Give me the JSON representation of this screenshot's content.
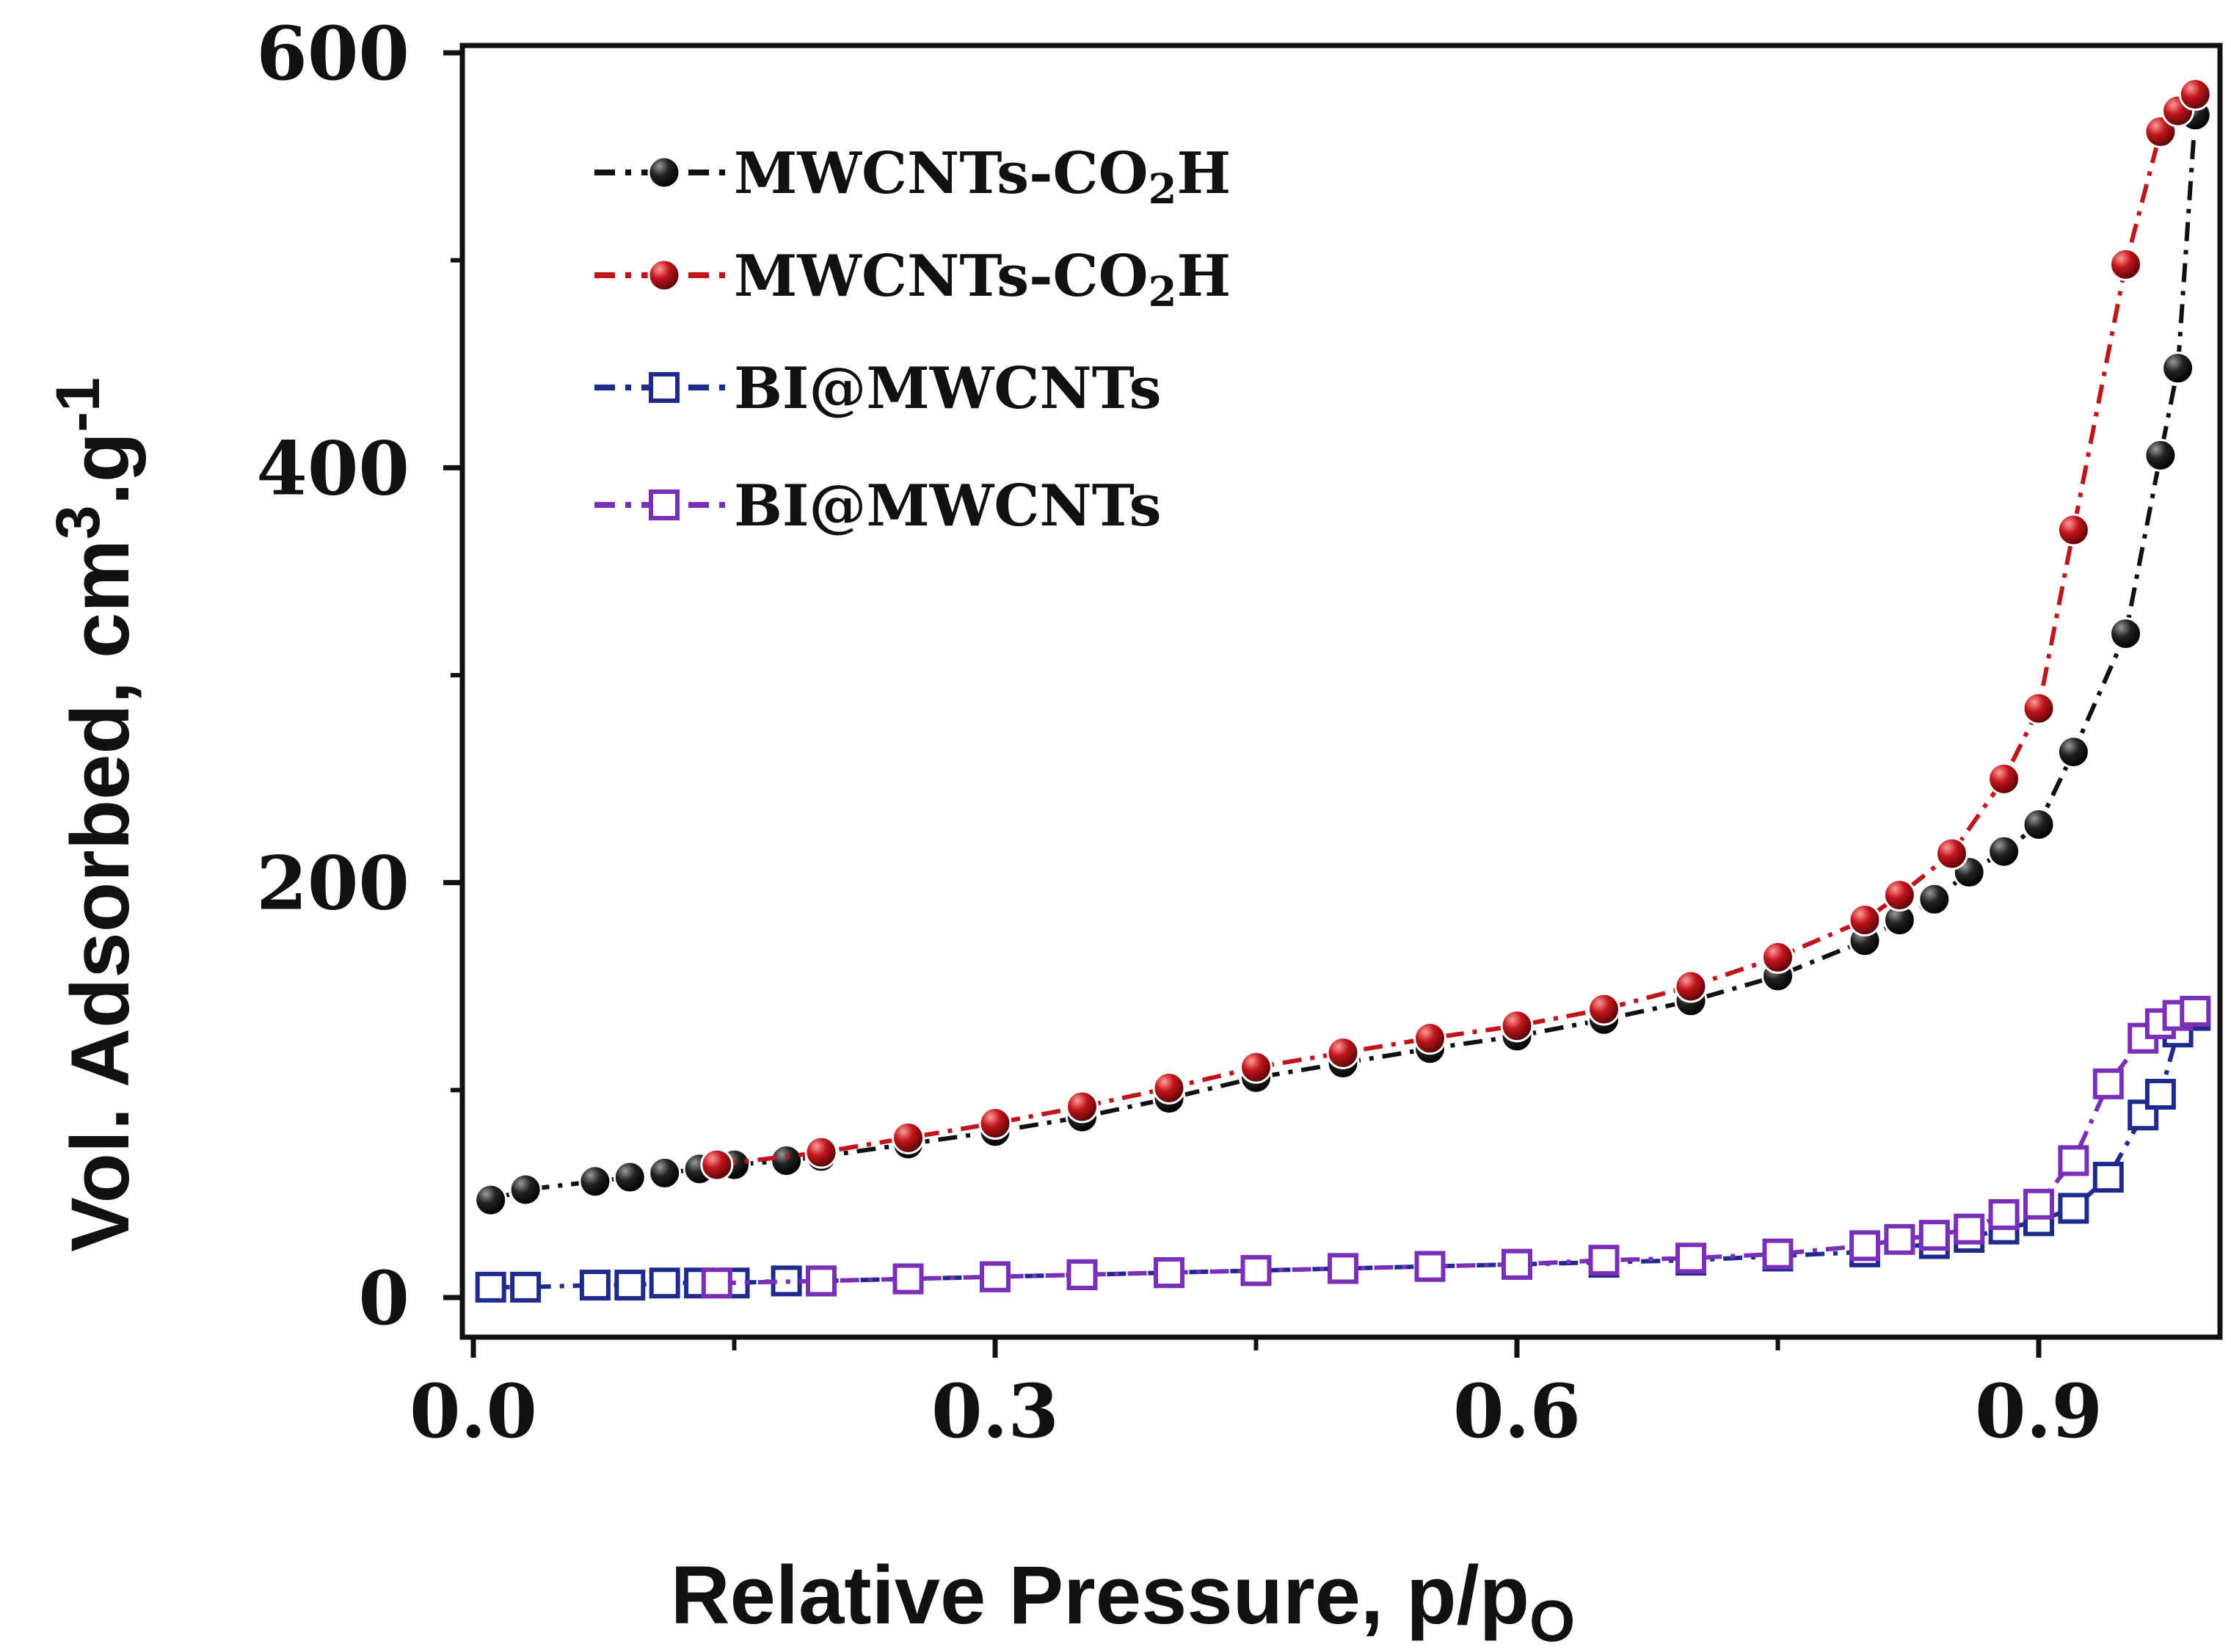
{
  "chart_data": {
    "type": "scatter",
    "title": "",
    "xlabel": "Relative Pressure, p/p",
    "xlabel_sub": "O",
    "ylabel": "Vol. Adsorbed, cm",
    "ylabel_sup1": "3",
    "ylabel_mid": ".g",
    "ylabel_sup2": "-1",
    "xlim": [
      0.0,
      1.0
    ],
    "ylim": [
      0,
      600
    ],
    "xticks": [
      0.0,
      0.3,
      0.6,
      0.9
    ],
    "xtick_labels": [
      "0.0",
      "0.3",
      "0.6",
      "0.9"
    ],
    "yticks": [
      0,
      200,
      400,
      600
    ],
    "ytick_labels": [
      "0",
      "200",
      "400",
      "600"
    ],
    "legend_position": "top-left",
    "series": [
      {
        "name": "MWCNTs-CO",
        "name_sub": "2",
        "name_tail": "H",
        "marker": "sphere",
        "color": "#111111",
        "line_style": "dash-dot",
        "x": [
          0.01,
          0.03,
          0.07,
          0.09,
          0.11,
          0.13,
          0.15,
          0.18,
          0.2,
          0.25,
          0.3,
          0.35,
          0.4,
          0.45,
          0.5,
          0.55,
          0.6,
          0.65,
          0.7,
          0.75,
          0.8,
          0.82,
          0.84,
          0.86,
          0.88,
          0.9,
          0.92,
          0.95,
          0.97,
          0.98,
          0.99
        ],
        "y": [
          47,
          52,
          56,
          58,
          60,
          62,
          64,
          66,
          68,
          74,
          80,
          87,
          96,
          106,
          113,
          120,
          126,
          134,
          143,
          155,
          172,
          182,
          192,
          205,
          215,
          228,
          263,
          320,
          406,
          448,
          570
        ]
      },
      {
        "name": "MWCNTs-CO",
        "name_sub": "2",
        "name_tail": "H",
        "marker": "sphere",
        "color": "#c0151b",
        "line_style": "dash-dot",
        "x": [
          0.14,
          0.2,
          0.25,
          0.3,
          0.35,
          0.4,
          0.45,
          0.5,
          0.55,
          0.6,
          0.65,
          0.7,
          0.75,
          0.8,
          0.82,
          0.85,
          0.88,
          0.9,
          0.92,
          0.95,
          0.97,
          0.98,
          0.99
        ],
        "y": [
          64,
          70,
          77,
          84,
          92,
          101,
          111,
          118,
          125,
          131,
          139,
          150,
          164,
          182,
          194,
          214,
          250,
          284,
          370,
          498,
          562,
          572,
          580
        ]
      },
      {
        "name": "BI@MWCNTs",
        "marker": "square",
        "color": "#1f2a8f",
        "line_style": "dash-dot",
        "x": [
          0.01,
          0.03,
          0.07,
          0.09,
          0.11,
          0.13,
          0.15,
          0.18,
          0.2,
          0.25,
          0.3,
          0.35,
          0.4,
          0.45,
          0.5,
          0.55,
          0.6,
          0.65,
          0.7,
          0.75,
          0.8,
          0.84,
          0.86,
          0.88,
          0.9,
          0.92,
          0.94,
          0.96,
          0.97,
          0.98,
          0.99
        ],
        "y": [
          5,
          5,
          6,
          6,
          7,
          7,
          7,
          8,
          8,
          9,
          10,
          11,
          12,
          13,
          14,
          15,
          16,
          17,
          18,
          20,
          22,
          26,
          29,
          33,
          37,
          43,
          58,
          88,
          98,
          128,
          136
        ]
      },
      {
        "name": "BI@MWCNTs",
        "marker": "square",
        "color": "#7a2fb8",
        "line_style": "dash-dot",
        "x": [
          0.14,
          0.2,
          0.25,
          0.3,
          0.35,
          0.4,
          0.45,
          0.5,
          0.55,
          0.6,
          0.65,
          0.7,
          0.75,
          0.8,
          0.82,
          0.84,
          0.86,
          0.88,
          0.9,
          0.92,
          0.94,
          0.96,
          0.97,
          0.98,
          0.99
        ],
        "y": [
          7,
          8,
          9,
          10,
          11,
          12,
          13,
          14,
          15,
          16,
          18,
          19,
          21,
          25,
          28,
          30,
          33,
          40,
          45,
          66,
          103,
          125,
          132,
          136,
          138
        ]
      }
    ]
  }
}
